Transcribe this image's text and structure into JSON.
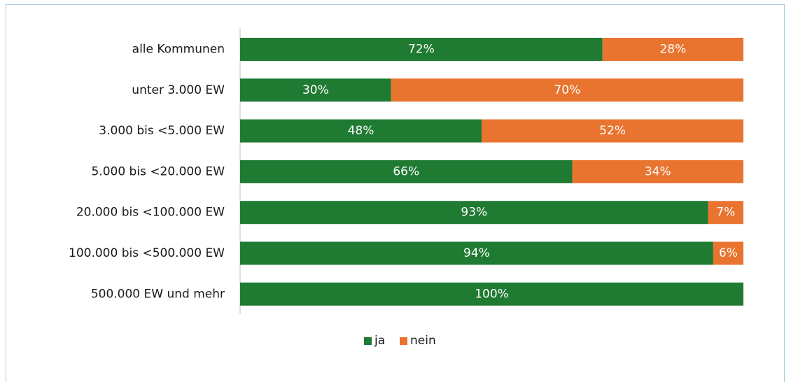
{
  "chart_data": {
    "type": "bar",
    "orientation": "horizontal",
    "stacked": true,
    "categories": [
      "alle Kommunen",
      "unter 3.000 EW",
      "3.000 bis <5.000 EW",
      "5.000 bis <20.000 EW",
      "20.000 bis <100.000 EW",
      "100.000 bis <500.000 EW",
      "500.000 EW und mehr"
    ],
    "series": [
      {
        "name": "ja",
        "color": "#1f7a32",
        "values": [
          72,
          30,
          48,
          66,
          93,
          94,
          100
        ]
      },
      {
        "name": "nein",
        "color": "#e9742f",
        "values": [
          28,
          70,
          52,
          34,
          7,
          6,
          0
        ]
      }
    ],
    "value_suffix": "%",
    "xlim": [
      0,
      100
    ],
    "title": "",
    "xlabel": "",
    "ylabel": "",
    "grid": false,
    "legend_position": "bottom"
  }
}
